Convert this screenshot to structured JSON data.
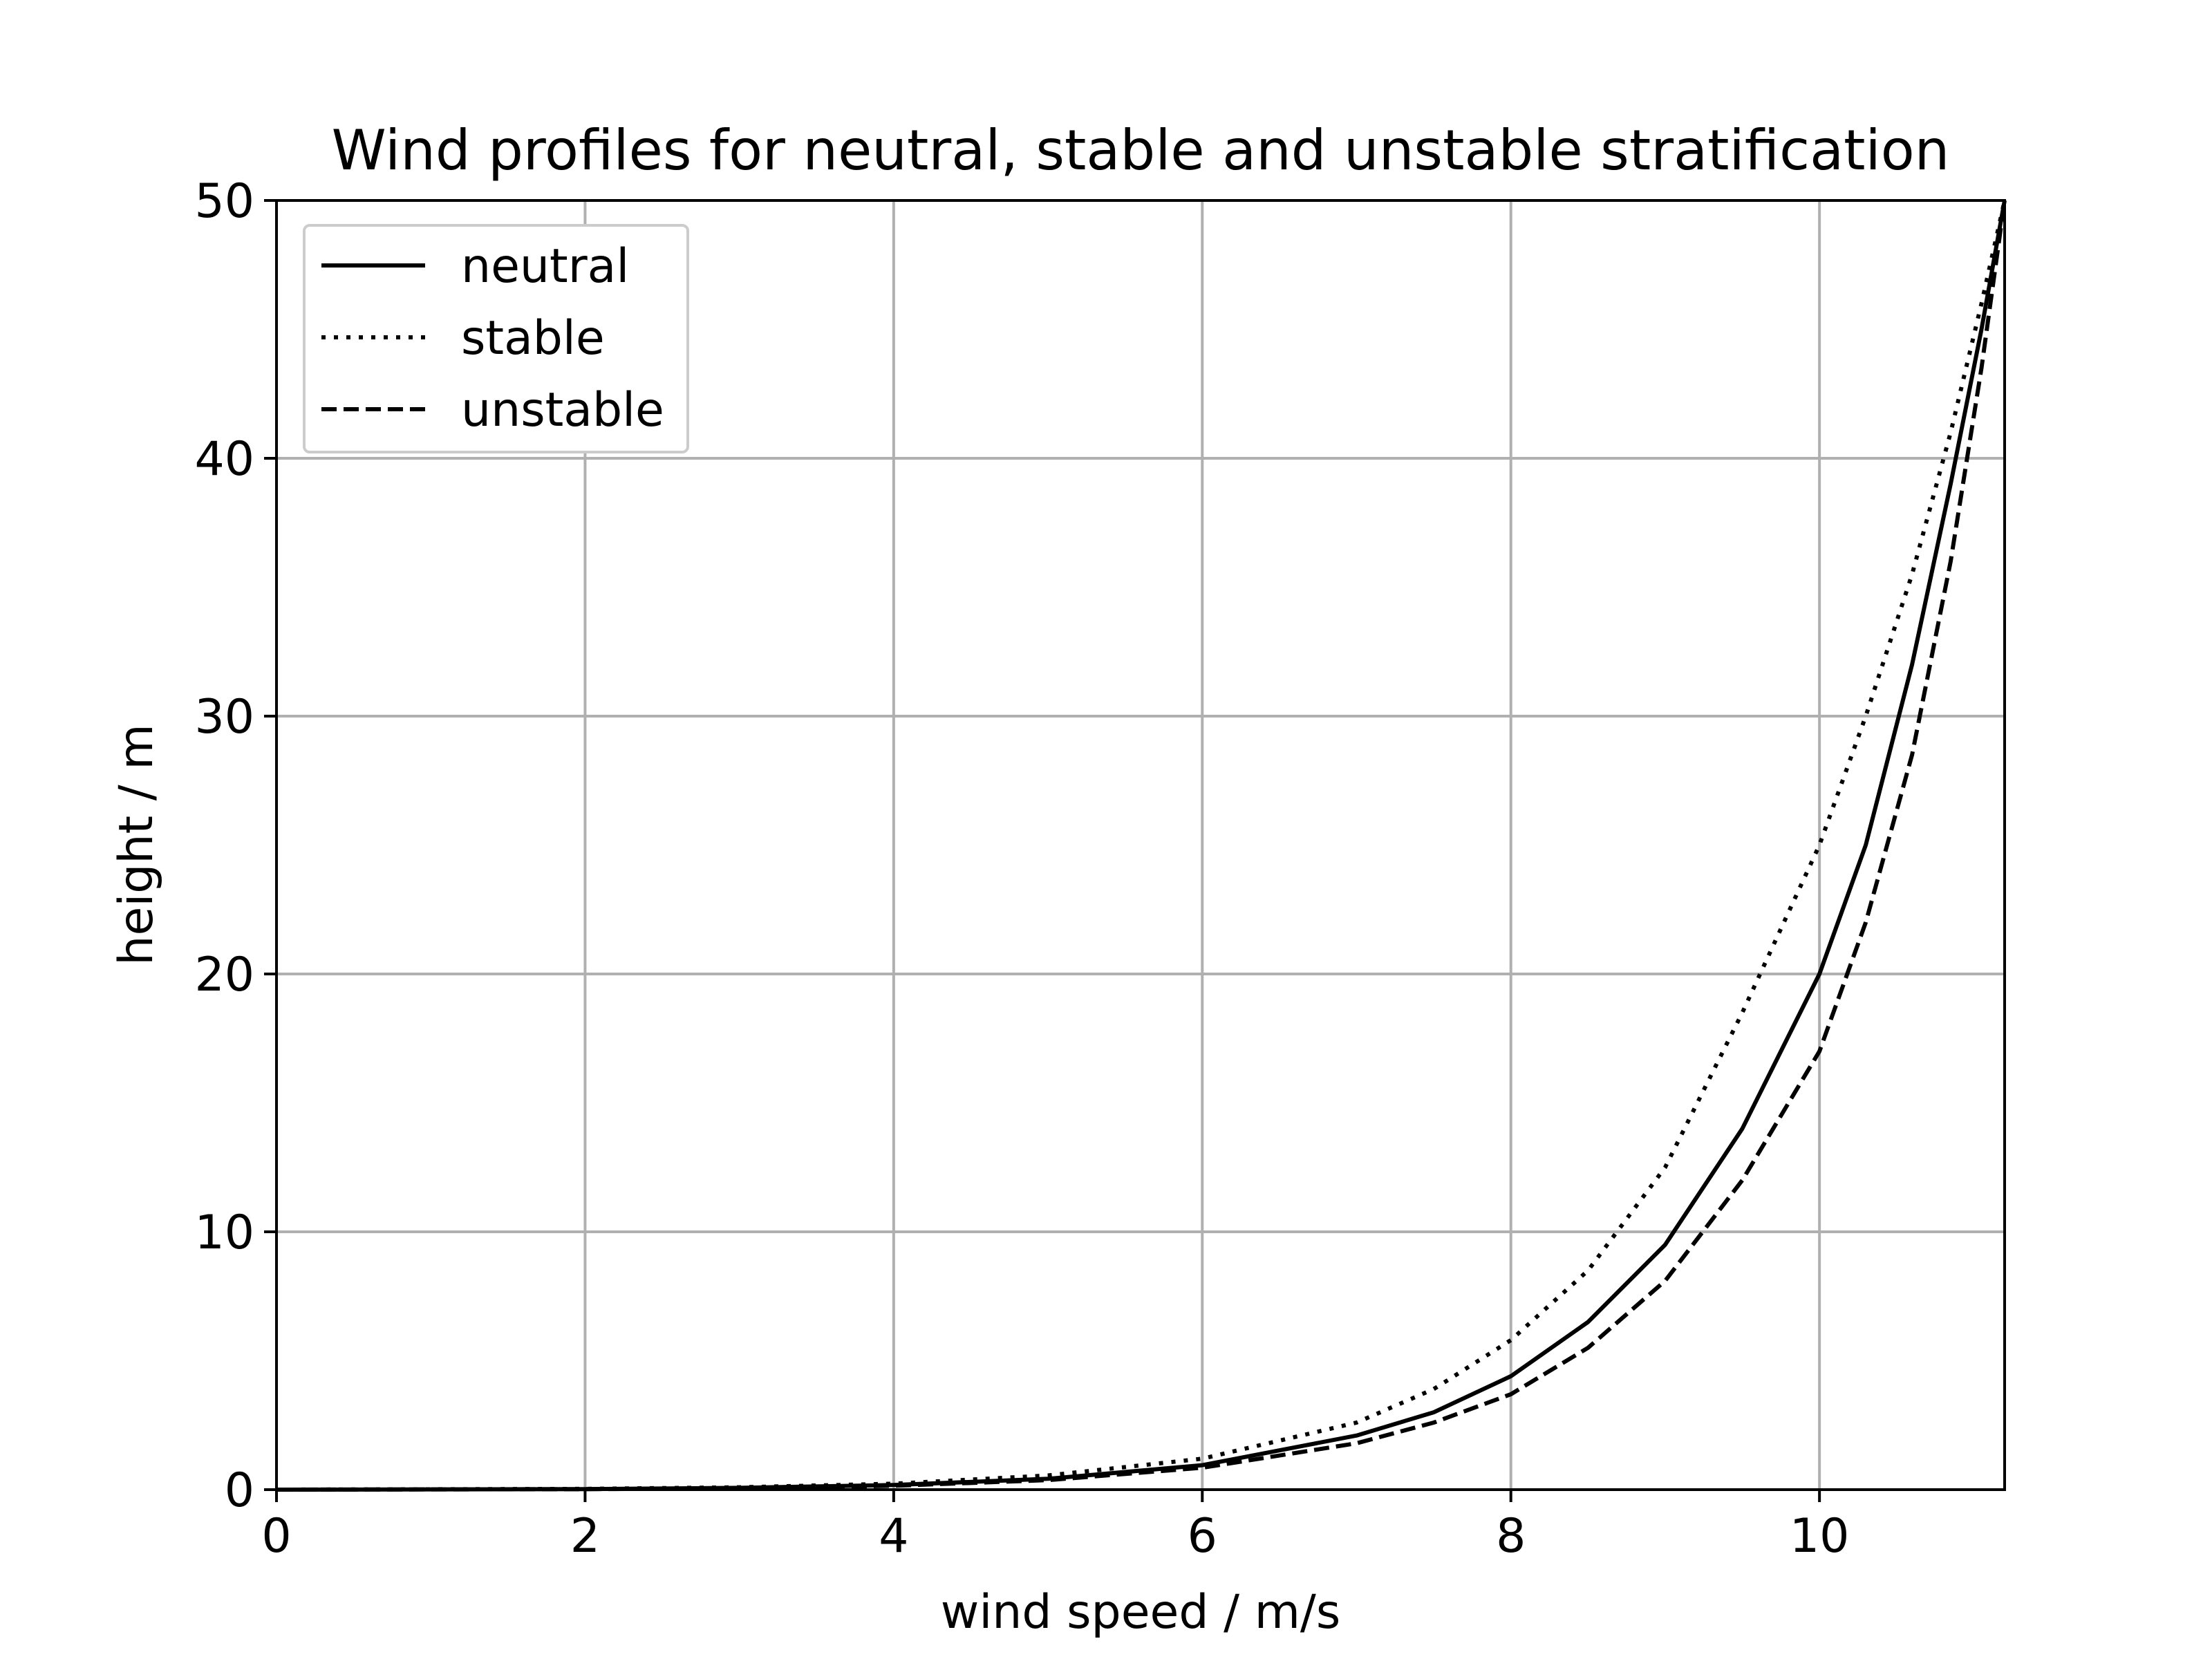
{
  "chart_data": {
    "type": "line",
    "title": "Wind profiles for neutral, stable and unstable stratification",
    "xlabel": "wind speed / m/s",
    "ylabel": "height / m",
    "xlim": [
      0,
      11.2
    ],
    "ylim": [
      0,
      50
    ],
    "xticks": [
      0,
      2,
      4,
      6,
      8,
      10
    ],
    "yticks": [
      0,
      10,
      20,
      30,
      40,
      50
    ],
    "grid": true,
    "legend_position": "upper-left",
    "series": [
      {
        "name": "neutral",
        "style": "solid",
        "color": "#000000",
        "points": [
          [
            0,
            0
          ],
          [
            2,
            0.02
          ],
          [
            3,
            0.07
          ],
          [
            4,
            0.18
          ],
          [
            5,
            0.42
          ],
          [
            6,
            0.95
          ],
          [
            7,
            2.1
          ],
          [
            7.5,
            3.0
          ],
          [
            8,
            4.4
          ],
          [
            8.5,
            6.5
          ],
          [
            9,
            9.5
          ],
          [
            9.5,
            14.0
          ],
          [
            10,
            20.0
          ],
          [
            10.3,
            25.0
          ],
          [
            10.6,
            32.0
          ],
          [
            10.85,
            39.0
          ],
          [
            11.05,
            45.0
          ],
          [
            11.2,
            50.0
          ]
        ]
      },
      {
        "name": "stable",
        "style": "dotted",
        "color": "#000000",
        "points": [
          [
            0,
            0
          ],
          [
            2,
            0.03
          ],
          [
            3,
            0.09
          ],
          [
            4,
            0.23
          ],
          [
            5,
            0.55
          ],
          [
            6,
            1.2
          ],
          [
            7,
            2.6
          ],
          [
            7.5,
            3.9
          ],
          [
            8,
            5.8
          ],
          [
            8.5,
            8.5
          ],
          [
            9,
            12.5
          ],
          [
            9.5,
            18.5
          ],
          [
            10,
            25.0
          ],
          [
            10.3,
            30.0
          ],
          [
            10.6,
            35.5
          ],
          [
            10.85,
            41.0
          ],
          [
            11.05,
            46.0
          ],
          [
            11.2,
            50.0
          ]
        ]
      },
      {
        "name": "unstable",
        "style": "dashed",
        "color": "#000000",
        "points": [
          [
            0,
            0
          ],
          [
            2,
            0.02
          ],
          [
            3,
            0.05
          ],
          [
            4,
            0.15
          ],
          [
            5,
            0.37
          ],
          [
            6,
            0.85
          ],
          [
            7,
            1.8
          ],
          [
            7.5,
            2.6
          ],
          [
            8,
            3.7
          ],
          [
            8.5,
            5.5
          ],
          [
            9,
            8.1
          ],
          [
            9.5,
            12.0
          ],
          [
            10,
            17.0
          ],
          [
            10.3,
            22.0
          ],
          [
            10.6,
            28.5
          ],
          [
            10.85,
            36.0
          ],
          [
            11.05,
            43.5
          ],
          [
            11.2,
            50.0
          ]
        ]
      }
    ]
  }
}
